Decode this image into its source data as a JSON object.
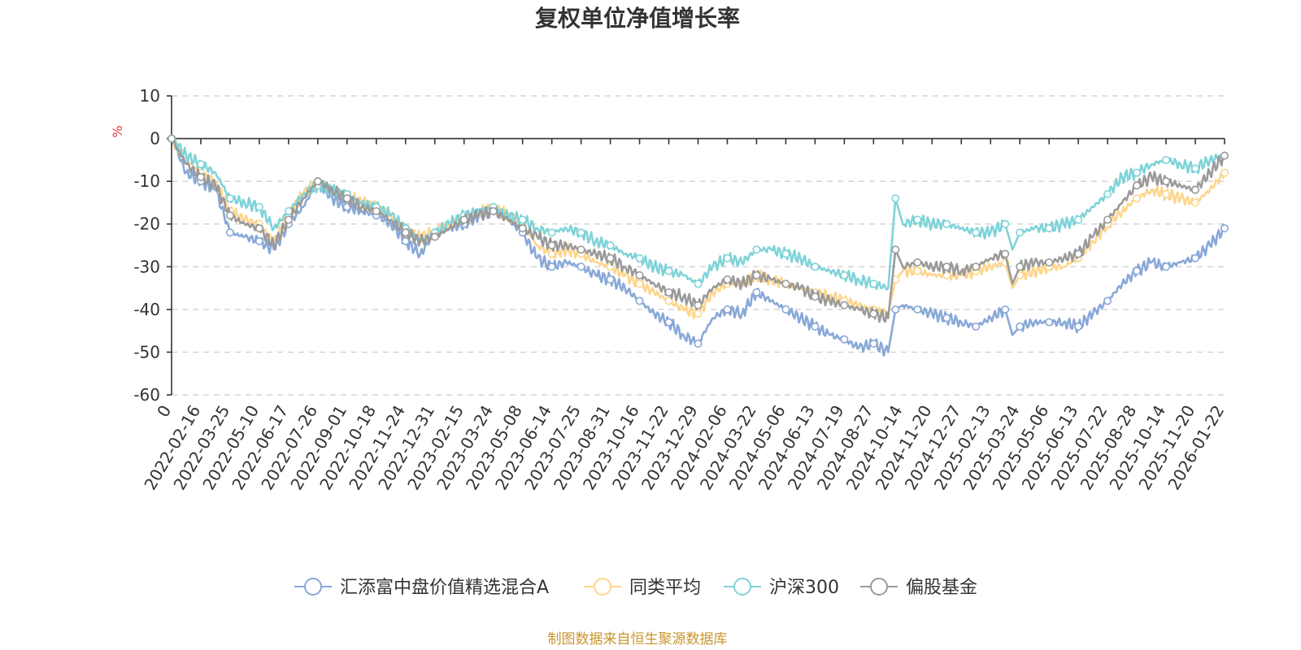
{
  "chart_data": {
    "type": "line",
    "title": "复权单位净值增长率",
    "ylabel": "%",
    "ylim": [
      -60,
      10
    ],
    "yticks": [
      10,
      0,
      -10,
      -20,
      -30,
      -40,
      -50,
      -60
    ],
    "x_tick_labels": [
      "0",
      "2022-02-16",
      "2022-03-25",
      "2022-05-10",
      "2022-06-17",
      "2022-07-26",
      "2022-09-01",
      "2022-10-18",
      "2022-11-24",
      "2022-12-31",
      "2023-02-15",
      "2023-03-24",
      "2023-05-08",
      "2023-06-14",
      "2023-07-25",
      "2023-08-31",
      "2023-10-16",
      "2023-11-22",
      "2023-12-29",
      "2024-02-06",
      "2024-03-22",
      "2024-05-06",
      "2024-06-13",
      "2024-07-19",
      "2024-08-27",
      "2024-10-14",
      "2024-11-20",
      "2024-12-27",
      "2025-02-13",
      "2025-03-24",
      "2025-05-06",
      "2025-06-13",
      "2025-07-22",
      "2025-08-28",
      "2025-10-14",
      "2025-11-20",
      "2026-01-22"
    ],
    "x": [
      0,
      0.5,
      1,
      1.5,
      2,
      2.5,
      3,
      3.5,
      4,
      4.5,
      5,
      5.5,
      6,
      6.5,
      7,
      7.5,
      8,
      8.5,
      9,
      9.5,
      10,
      10.5,
      11,
      11.5,
      12,
      12.5,
      13,
      13.5,
      14,
      14.5,
      15,
      15.5,
      16,
      16.5,
      17,
      17.5,
      18,
      18.5,
      19,
      19.5,
      20,
      20.5,
      21,
      21.5,
      22,
      22.5,
      23,
      23.5,
      24,
      24.5,
      24.75,
      25,
      25.5,
      26,
      26.5,
      27,
      27.5,
      28,
      28.5,
      28.75,
      29,
      29.5,
      30,
      30.5,
      31,
      31.5,
      32,
      32.5,
      33,
      33.5,
      34,
      34.5,
      35,
      35.5,
      36
    ],
    "series": [
      {
        "name": "汇添富中盘价值精选混合A",
        "color": "#88a8d8",
        "values": [
          0,
          -8,
          -10,
          -12,
          -22,
          -23,
          -24,
          -26,
          -20,
          -16,
          -10,
          -14,
          -16,
          -17,
          -18,
          -20,
          -24,
          -27,
          -22,
          -21,
          -20,
          -18,
          -17,
          -19,
          -22,
          -28,
          -30,
          -29,
          -30,
          -32,
          -33,
          -35,
          -38,
          -41,
          -43,
          -46,
          -48,
          -42,
          -40,
          -41,
          -36,
          -38,
          -40,
          -42,
          -44,
          -46,
          -47,
          -49,
          -48,
          -50,
          -40,
          -39,
          -40,
          -41,
          -42,
          -43,
          -44,
          -42,
          -40,
          -46,
          -44,
          -43,
          -43,
          -43,
          -44,
          -41,
          -38,
          -34,
          -31,
          -29,
          -30,
          -29,
          -28,
          -25,
          -21
        ]
      },
      {
        "name": "同类平均",
        "color": "#fdd68c",
        "values": [
          0,
          -5,
          -8,
          -10,
          -17,
          -19,
          -20,
          -24,
          -18,
          -13,
          -10,
          -12,
          -13,
          -15,
          -16,
          -18,
          -21,
          -23,
          -22,
          -20,
          -18,
          -17,
          -16,
          -18,
          -20,
          -25,
          -27,
          -26,
          -27,
          -29,
          -30,
          -32,
          -34,
          -36,
          -38,
          -40,
          -41,
          -36,
          -34,
          -34,
          -32,
          -33,
          -34,
          -35,
          -36,
          -37,
          -38,
          -39,
          -40,
          -41,
          -33,
          -31,
          -31,
          -32,
          -32,
          -32,
          -31,
          -30,
          -29,
          -35,
          -32,
          -31,
          -30,
          -30,
          -28,
          -24,
          -20,
          -17,
          -14,
          -12,
          -13,
          -14,
          -15,
          -12,
          -8
        ]
      },
      {
        "name": "沪深300",
        "color": "#7fd3d8",
        "values": [
          0,
          -4,
          -6,
          -8,
          -14,
          -15,
          -16,
          -21,
          -17,
          -13,
          -11,
          -12,
          -13,
          -15,
          -16,
          -18,
          -21,
          -24,
          -22,
          -20,
          -18,
          -17,
          -16,
          -18,
          -19,
          -21,
          -22,
          -21,
          -22,
          -24,
          -25,
          -27,
          -28,
          -30,
          -31,
          -32,
          -34,
          -30,
          -28,
          -29,
          -26,
          -26,
          -27,
          -28,
          -30,
          -31,
          -32,
          -33,
          -34,
          -35,
          -14,
          -20,
          -19,
          -20,
          -20,
          -21,
          -22,
          -22,
          -20,
          -26,
          -22,
          -21,
          -21,
          -20,
          -19,
          -16,
          -13,
          -9,
          -8,
          -6,
          -5,
          -6,
          -7,
          -5,
          -4
        ]
      },
      {
        "name": "偏股基金",
        "color": "#9a9a9a",
        "values": [
          0,
          -6,
          -9,
          -11,
          -18,
          -20,
          -21,
          -25,
          -19,
          -14,
          -10,
          -12,
          -14,
          -16,
          -17,
          -19,
          -22,
          -24,
          -23,
          -21,
          -19,
          -18,
          -17,
          -19,
          -21,
          -23,
          -25,
          -25,
          -26,
          -27,
          -28,
          -30,
          -32,
          -34,
          -36,
          -37,
          -39,
          -35,
          -33,
          -34,
          -32,
          -33,
          -34,
          -35,
          -37,
          -38,
          -39,
          -40,
          -41,
          -42,
          -26,
          -30,
          -29,
          -30,
          -30,
          -31,
          -30,
          -28,
          -27,
          -34,
          -30,
          -29,
          -29,
          -28,
          -27,
          -23,
          -19,
          -15,
          -11,
          -9,
          -10,
          -11,
          -12,
          -8,
          -4
        ]
      }
    ],
    "legend_position": "bottom",
    "grid": true
  },
  "footer": {
    "source": "制图数据来自恒生聚源数据库"
  }
}
